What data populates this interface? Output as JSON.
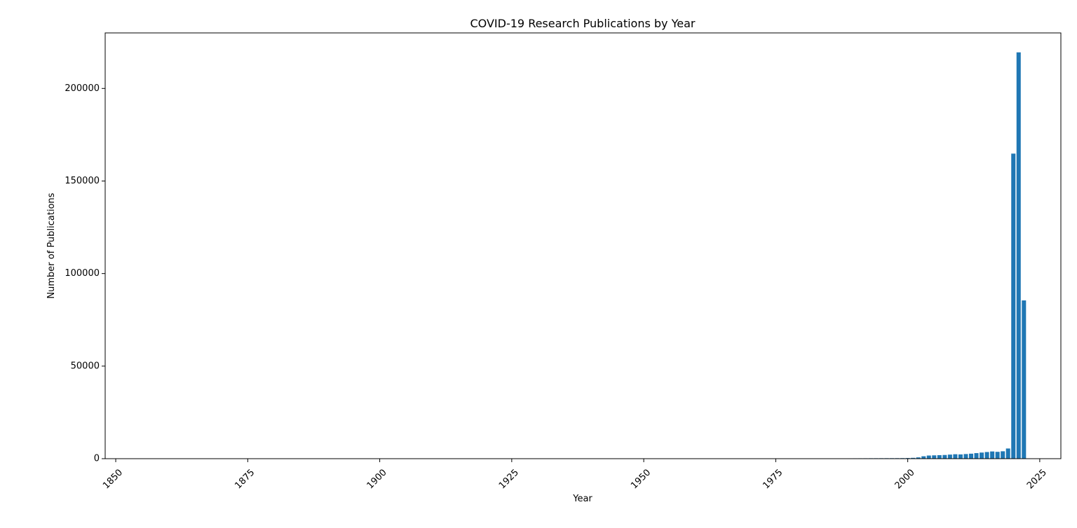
{
  "chart_data": {
    "type": "bar",
    "title": "COVID-19 Research Publications by Year",
    "xlabel": "Year",
    "ylabel": "Number of Publications",
    "xlim": [
      1848,
      2029
    ],
    "ylim": [
      0,
      230000
    ],
    "xticks": [
      1850,
      1875,
      1900,
      1925,
      1950,
      1975,
      2000,
      2025
    ],
    "yticks": [
      0,
      50000,
      100000,
      150000,
      200000
    ],
    "grid": false,
    "bar_color": "#1f77b4",
    "x": [
      1975,
      1976,
      1977,
      1978,
      1979,
      1980,
      1981,
      1982,
      1983,
      1984,
      1985,
      1986,
      1987,
      1988,
      1989,
      1990,
      1991,
      1992,
      1993,
      1994,
      1995,
      1996,
      1997,
      1998,
      1999,
      2000,
      2001,
      2002,
      2003,
      2004,
      2005,
      2006,
      2007,
      2008,
      2009,
      2010,
      2011,
      2012,
      2013,
      2014,
      2015,
      2016,
      2017,
      2018,
      2019,
      2020,
      2021,
      2022
    ],
    "values": [
      50,
      60,
      70,
      80,
      90,
      100,
      110,
      120,
      130,
      140,
      150,
      160,
      170,
      180,
      190,
      200,
      210,
      220,
      230,
      240,
      250,
      260,
      270,
      280,
      300,
      350,
      450,
      700,
      1300,
      1700,
      1800,
      1900,
      2000,
      2200,
      2400,
      2300,
      2500,
      2700,
      3000,
      3300,
      3600,
      3900,
      3700,
      4000,
      5500,
      164800,
      219500,
      85500
    ]
  }
}
